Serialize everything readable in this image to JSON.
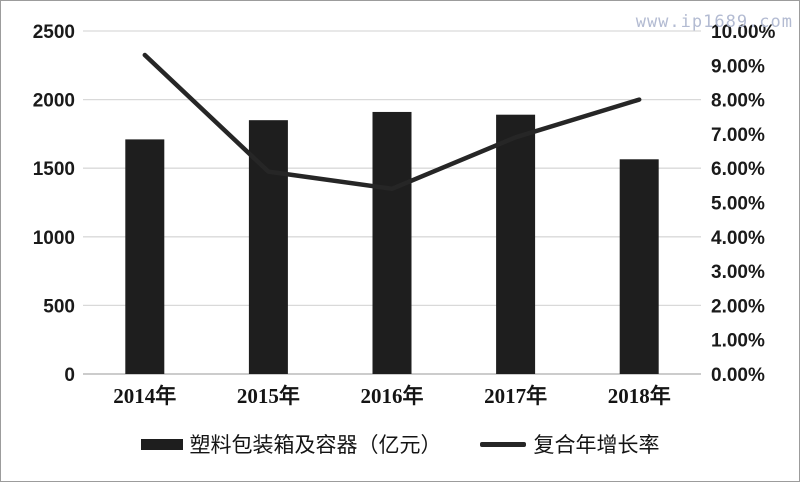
{
  "watermark": {
    "text": "www.ip1689.com",
    "color": "#b3bbd2"
  },
  "chart_data": {
    "type": "bar+line combo",
    "title": "",
    "categories": [
      "2014年",
      "2015年",
      "2016年",
      "2017年",
      "2018年"
    ],
    "series": [
      {
        "name": "塑料包装箱及容器（亿元）",
        "type": "bar",
        "axis": "left",
        "values": [
          1710,
          1850,
          1910,
          1890,
          1565
        ],
        "color": "#1e1e1e"
      },
      {
        "name": "复合年增长率",
        "type": "line",
        "axis": "right",
        "values": [
          9.3,
          5.9,
          5.4,
          6.9,
          8.0
        ],
        "unit": "%",
        "color": "#262626"
      }
    ],
    "left_axis": {
      "min": 0,
      "max": 2500,
      "ticks": [
        {
          "v": 0,
          "label": "0"
        },
        {
          "v": 500,
          "label": "500"
        },
        {
          "v": 1000,
          "label": "1000"
        },
        {
          "v": 1500,
          "label": "1500"
        },
        {
          "v": 2000,
          "label": "2000"
        },
        {
          "v": 2500,
          "label": "2500"
        }
      ]
    },
    "right_axis": {
      "min": 0,
      "max": 10,
      "ticks": [
        {
          "v": 0,
          "label": "0.00%"
        },
        {
          "v": 1,
          "label": "1.00%"
        },
        {
          "v": 2,
          "label": "2.00%"
        },
        {
          "v": 3,
          "label": "3.00%"
        },
        {
          "v": 4,
          "label": "4.00%"
        },
        {
          "v": 5,
          "label": "5.00%"
        },
        {
          "v": 6,
          "label": "6.00%"
        },
        {
          "v": 7,
          "label": "7.00%"
        },
        {
          "v": 8,
          "label": "8.00%"
        },
        {
          "v": 9,
          "label": "9.00%"
        },
        {
          "v": 10,
          "label": "10.00%"
        }
      ]
    },
    "grid": "horizontal",
    "legend_position": "bottom",
    "colors": {
      "bar": "#1e1e1e",
      "line": "#262626",
      "gridline": "#d9d9d9",
      "baseline": "#aeaeae",
      "text": "#1a1a1a"
    }
  },
  "legend": {
    "items": [
      {
        "label": "塑料包装箱及容器（亿元）",
        "swatch": "bar"
      },
      {
        "label": "复合年增长率",
        "swatch": "line"
      }
    ]
  }
}
